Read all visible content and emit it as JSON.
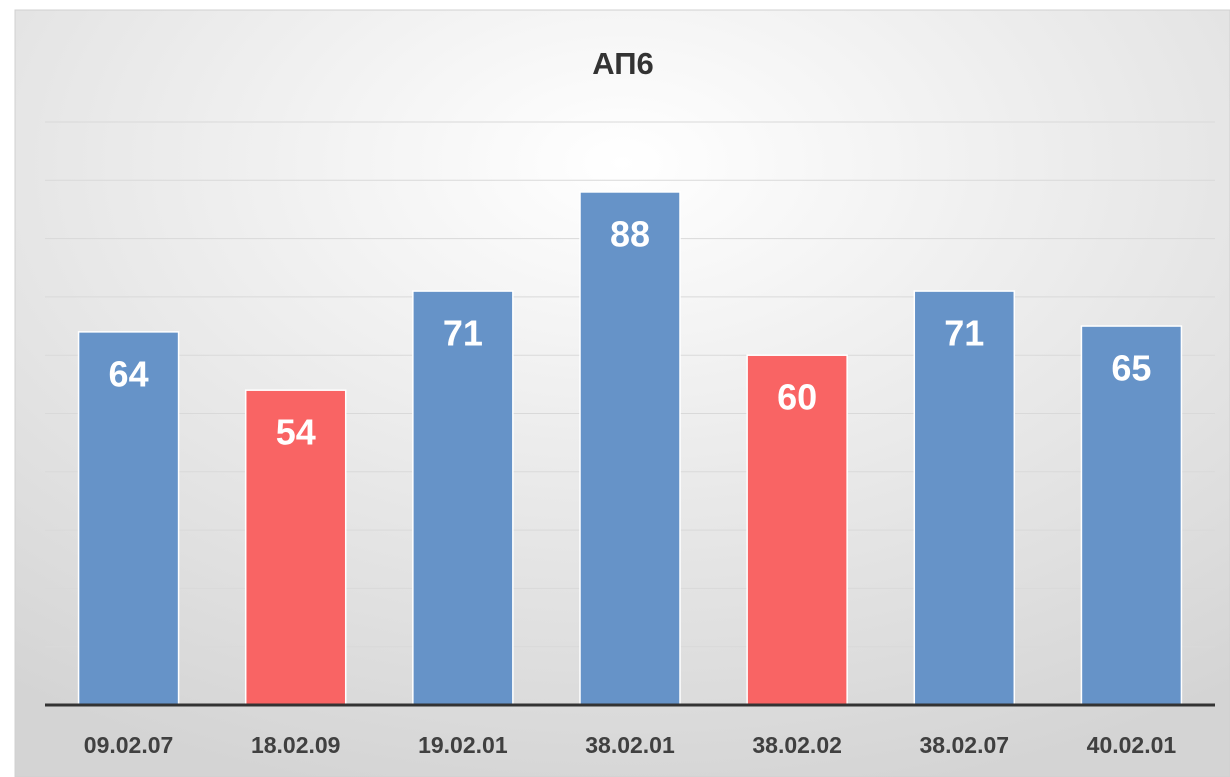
{
  "chart_data": {
    "type": "bar",
    "title": "АП6",
    "categories": [
      "09.02.07",
      "18.02.09",
      "19.02.01",
      "38.02.01",
      "38.02.02",
      "38.02.07",
      "40.02.01"
    ],
    "values": [
      64,
      54,
      71,
      88,
      60,
      71,
      65
    ],
    "colors": [
      "#6693c8",
      "#f96464",
      "#6693c8",
      "#6693c8",
      "#f96464",
      "#6693c8",
      "#6693c8"
    ],
    "ylim": [
      0,
      100
    ],
    "yticks": [
      0,
      10,
      20,
      30,
      40,
      50,
      60,
      70,
      80,
      90,
      100
    ],
    "grid": true
  }
}
